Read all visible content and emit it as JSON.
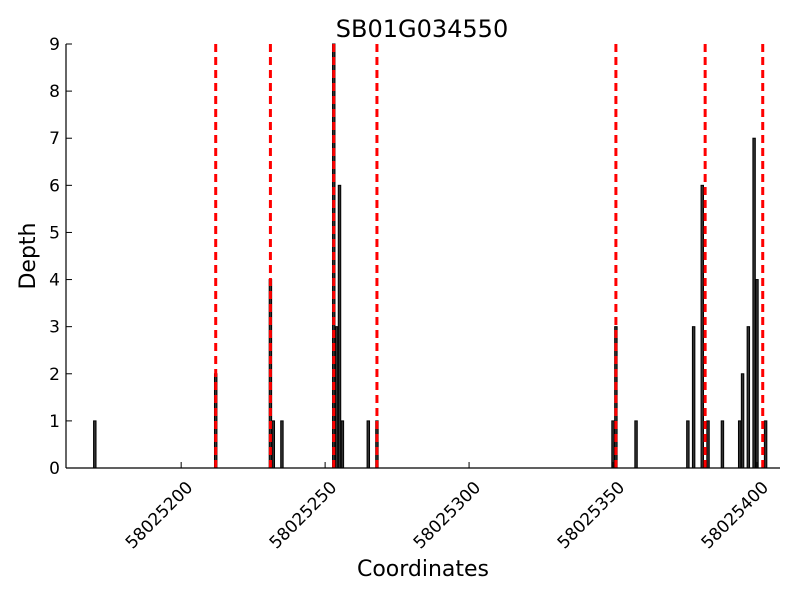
{
  "chart_data": {
    "type": "bar",
    "title": "SB01G034550",
    "xlabel": "Coordinates",
    "ylabel": "Depth",
    "xlim": [
      58025160,
      58025408
    ],
    "ylim": [
      0,
      9
    ],
    "yticks": [
      0,
      1,
      2,
      3,
      4,
      5,
      6,
      7,
      8,
      9
    ],
    "xticks": [
      58025200,
      58025250,
      58025300,
      58025350,
      58025400
    ],
    "grid": false,
    "bars": [
      {
        "x": 58025170,
        "y": 1
      },
      {
        "x": 58025212,
        "y": 2
      },
      {
        "x": 58025231,
        "y": 4
      },
      {
        "x": 58025232,
        "y": 1
      },
      {
        "x": 58025235,
        "y": 1
      },
      {
        "x": 58025253,
        "y": 9
      },
      {
        "x": 58025254,
        "y": 3
      },
      {
        "x": 58025255,
        "y": 6
      },
      {
        "x": 58025256,
        "y": 1
      },
      {
        "x": 58025265,
        "y": 1
      },
      {
        "x": 58025268,
        "y": 1
      },
      {
        "x": 58025350,
        "y": 1
      },
      {
        "x": 58025351,
        "y": 3
      },
      {
        "x": 58025358,
        "y": 1
      },
      {
        "x": 58025376,
        "y": 1
      },
      {
        "x": 58025378,
        "y": 3
      },
      {
        "x": 58025381,
        "y": 6
      },
      {
        "x": 58025383,
        "y": 1
      },
      {
        "x": 58025388,
        "y": 1
      },
      {
        "x": 58025394,
        "y": 1
      },
      {
        "x": 58025395,
        "y": 2
      },
      {
        "x": 58025397,
        "y": 3
      },
      {
        "x": 58025399,
        "y": 7
      },
      {
        "x": 58025400,
        "y": 4
      },
      {
        "x": 58025403,
        "y": 1
      }
    ],
    "vlines": [
      58025212,
      58025231,
      58025253,
      58025268,
      58025351,
      58025382,
      58025402
    ],
    "colors": {
      "bar_fill": "#333333",
      "bar_edge": "#000000",
      "vline": "#ff0000"
    }
  }
}
